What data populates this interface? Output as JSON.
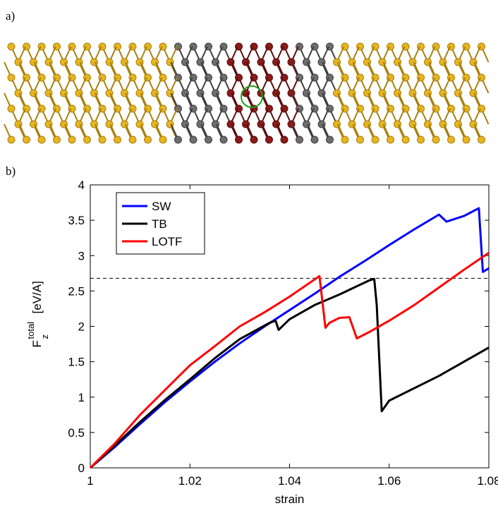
{
  "panel_a_label": "a)",
  "panel_b_label": "b)",
  "chart_data": {
    "type": "line",
    "xlabel": "strain",
    "ylabel": {
      "base": "F",
      "sub": "z",
      "sup": "total",
      "unit": "[eV/A]"
    },
    "xlim": [
      1,
      1.08
    ],
    "xticks": [
      1,
      1.02,
      1.04,
      1.06,
      1.08
    ],
    "ylim": [
      0,
      4
    ],
    "yticks": [
      0,
      0.5,
      1,
      1.5,
      2,
      2.5,
      3,
      3.5,
      4
    ],
    "hline": 2.68,
    "legend": "upper left",
    "series": [
      {
        "name": "SW",
        "color": "#0000ff",
        "x": [
          1,
          1.005,
          1.01,
          1.015,
          1.02,
          1.025,
          1.03,
          1.035,
          1.04,
          1.045,
          1.05,
          1.055,
          1.06,
          1.065,
          1.07,
          1.0715,
          1.075,
          1.078,
          1.0788,
          1.08
        ],
        "values": [
          0,
          0.3,
          0.62,
          0.93,
          1.22,
          1.5,
          1.76,
          2.0,
          2.23,
          2.46,
          2.7,
          2.92,
          3.15,
          3.37,
          3.58,
          3.48,
          3.56,
          3.67,
          2.77,
          2.82
        ]
      },
      {
        "name": "TB",
        "color": "#000000",
        "x": [
          1,
          1.005,
          1.01,
          1.015,
          1.02,
          1.025,
          1.03,
          1.036,
          1.0372,
          1.0378,
          1.04,
          1.045,
          1.05,
          1.056,
          1.057,
          1.0575,
          1.0585,
          1.06,
          1.07,
          1.08
        ],
        "values": [
          0,
          0.32,
          0.65,
          0.96,
          1.25,
          1.55,
          1.82,
          2.05,
          2.08,
          1.95,
          2.1,
          2.3,
          2.45,
          2.65,
          2.67,
          2.3,
          0.8,
          0.95,
          1.3,
          1.7
        ]
      },
      {
        "name": "LOTF",
        "color": "#ff0000",
        "x": [
          1,
          1.005,
          1.01,
          1.015,
          1.02,
          1.025,
          1.03,
          1.035,
          1.04,
          1.046,
          1.0472,
          1.048,
          1.05,
          1.052,
          1.0535,
          1.056,
          1.06,
          1.065,
          1.07,
          1.075,
          1.08
        ],
        "values": [
          0,
          0.35,
          0.75,
          1.1,
          1.45,
          1.72,
          2.0,
          2.2,
          2.42,
          2.71,
          1.98,
          2.05,
          2.12,
          2.13,
          1.83,
          1.92,
          2.08,
          2.3,
          2.55,
          2.8,
          3.04
        ]
      }
    ]
  }
}
